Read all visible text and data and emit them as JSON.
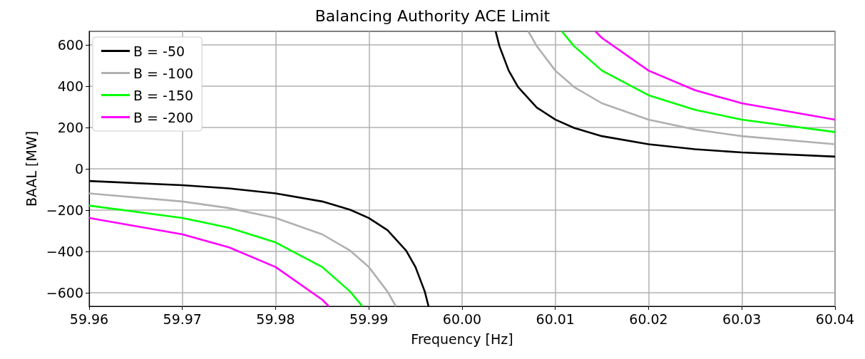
{
  "chart_data": {
    "type": "line",
    "title": "Balancing Authority ACE Limit",
    "xlabel": "Frequency [Hz]",
    "ylabel": "BAAL [MW]",
    "xlim": [
      59.96,
      60.04
    ],
    "ylim": [
      -665,
      665
    ],
    "xticks": [
      {
        "value": 59.96,
        "label": "59.96"
      },
      {
        "value": 59.97,
        "label": "59.97"
      },
      {
        "value": 59.98,
        "label": "59.98"
      },
      {
        "value": 59.99,
        "label": "59.99"
      },
      {
        "value": 60,
        "label": "60.00"
      },
      {
        "value": 60.01,
        "label": "60.01"
      },
      {
        "value": 60.02,
        "label": "60.02"
      },
      {
        "value": 60.03,
        "label": "60.03"
      },
      {
        "value": 60.04,
        "label": "60.04"
      }
    ],
    "yticks": [
      {
        "value": -600,
        "label": "−600"
      },
      {
        "value": -400,
        "label": "−400"
      },
      {
        "value": -200,
        "label": "−200"
      },
      0,
      200,
      400,
      600
    ],
    "grid": true,
    "legend": "top left",
    "line_style": "solid",
    "marker": "none",
    "series": [
      {
        "name": "B = -50",
        "color": "#000000",
        "x": [
          59.96,
          59.97,
          59.975,
          59.98,
          59.985,
          59.988,
          59.99,
          59.992,
          59.994,
          59.995,
          59.996,
          59.9964,
          60,
          60.0036,
          60.004,
          60.005,
          60.006,
          60.008,
          60.01,
          60.012,
          60.015,
          60.02,
          60.025,
          60.03,
          60.04
        ],
        "values": [
          -59,
          -79,
          -95,
          -119,
          -158,
          -198,
          -238,
          -297,
          -396,
          -475,
          -594,
          -665,
          null,
          665,
          594,
          475,
          396,
          297,
          238,
          198,
          158,
          119,
          95,
          79,
          59
        ]
      },
      {
        "name": "B = -100",
        "color": "#b0b0b0",
        "x": [
          59.96,
          59.97,
          59.975,
          59.98,
          59.985,
          59.988,
          59.99,
          59.992,
          59.9929,
          60,
          60.0071,
          60.008,
          60.01,
          60.012,
          60.015,
          60.02,
          60.025,
          60.03,
          60.04
        ],
        "values": [
          -119,
          -158,
          -190,
          -238,
          -317,
          -396,
          -475,
          -594,
          -665,
          null,
          665,
          594,
          475,
          396,
          317,
          238,
          190,
          158,
          119
        ]
      },
      {
        "name": "B = -150",
        "color": "#00ff00",
        "x": [
          59.96,
          59.97,
          59.975,
          59.98,
          59.985,
          59.988,
          59.9893,
          60,
          60.0107,
          60.012,
          60.015,
          60.02,
          60.025,
          60.03,
          60.04
        ],
        "values": [
          -178,
          -238,
          -285,
          -356,
          -475,
          -594,
          -665,
          null,
          665,
          594,
          475,
          356,
          285,
          238,
          178
        ]
      },
      {
        "name": "B = -200",
        "color": "#ff00ff",
        "x": [
          59.96,
          59.97,
          59.975,
          59.98,
          59.985,
          59.9857,
          60,
          60.0143,
          60.015,
          60.02,
          60.025,
          60.03,
          60.04
        ],
        "values": [
          -238,
          -317,
          -380,
          -475,
          -633,
          -665,
          null,
          665,
          633,
          475,
          380,
          317,
          238
        ]
      }
    ]
  }
}
